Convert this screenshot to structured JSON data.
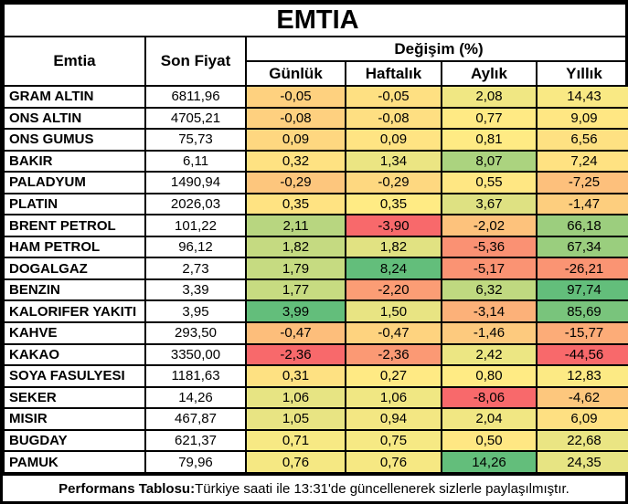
{
  "title": "EMTIA",
  "columns": {
    "emtia": "Emtia",
    "son_fiyat": "Son Fiyat",
    "degisim": "Değişim (%)",
    "sub": [
      "Günlük",
      "Haftalık",
      "Aylık",
      "Yıllık"
    ]
  },
  "rows": [
    {
      "name": "GRAM ALTIN",
      "price": "6811,96",
      "changes": [
        {
          "v": "-0,05",
          "c": "#FED17F"
        },
        {
          "v": "-0,05",
          "c": "#FEE082"
        },
        {
          "v": "2,08",
          "c": "#F0E783"
        },
        {
          "v": "14,43",
          "c": "#F9E984"
        }
      ]
    },
    {
      "name": "ONS ALTIN",
      "price": "4705,21",
      "changes": [
        {
          "v": "-0,08",
          "c": "#FED07F"
        },
        {
          "v": "-0,08",
          "c": "#FEDF82"
        },
        {
          "v": "0,77",
          "c": "#FFEA84"
        },
        {
          "v": "9,09",
          "c": "#FFE783"
        }
      ]
    },
    {
      "name": "ONS GUMUS",
      "price": "75,73",
      "changes": [
        {
          "v": "0,09",
          "c": "#FED780"
        },
        {
          "v": "0,09",
          "c": "#FFE483"
        },
        {
          "v": "0,81",
          "c": "#FFEB84"
        },
        {
          "v": "6,56",
          "c": "#FEE182"
        }
      ]
    },
    {
      "name": "BAKIR",
      "price": "6,11",
      "changes": [
        {
          "v": "0,32",
          "c": "#FEE282"
        },
        {
          "v": "1,34",
          "c": "#EBE583"
        },
        {
          "v": "8,07",
          "c": "#ABD37F"
        },
        {
          "v": "7,24",
          "c": "#FFE282"
        }
      ]
    },
    {
      "name": "PALADYUM",
      "price": "1490,94",
      "changes": [
        {
          "v": "-0,29",
          "c": "#FDC67D"
        },
        {
          "v": "-0,29",
          "c": "#FED880"
        },
        {
          "v": "0,55",
          "c": "#FFE783"
        },
        {
          "v": "-7,25",
          "c": "#FDC07C"
        }
      ]
    },
    {
      "name": "PLATIN",
      "price": "2026,03",
      "changes": [
        {
          "v": "0,35",
          "c": "#FFE382"
        },
        {
          "v": "0,35",
          "c": "#FFEB84"
        },
        {
          "v": "3,67",
          "c": "#DEE182"
        },
        {
          "v": "-1,47",
          "c": "#FDCE7E"
        }
      ]
    },
    {
      "name": "BRENT PETROL",
      "price": "101,22",
      "changes": [
        {
          "v": "2,11",
          "c": "#B8D680"
        },
        {
          "v": "-3,90",
          "c": "#F8696B"
        },
        {
          "v": "-2,02",
          "c": "#FDC27C"
        },
        {
          "v": "66,18",
          "c": "#9CCE7E"
        }
      ]
    },
    {
      "name": "HAM PETROL",
      "price": "96,12",
      "changes": [
        {
          "v": "1,82",
          "c": "#C5DA81"
        },
        {
          "v": "1,82",
          "c": "#E1E282"
        },
        {
          "v": "-5,36",
          "c": "#FA9173"
        },
        {
          "v": "67,34",
          "c": "#9ACE7E"
        }
      ]
    },
    {
      "name": "DOGALGAZ",
      "price": "2,73",
      "changes": [
        {
          "v": "1,79",
          "c": "#C6DB81"
        },
        {
          "v": "8,24",
          "c": "#63BE7B"
        },
        {
          "v": "-5,17",
          "c": "#FA9373"
        },
        {
          "v": "-26,21",
          "c": "#FA9473"
        }
      ]
    },
    {
      "name": "BENZIN",
      "price": "3,39",
      "changes": [
        {
          "v": "1,77",
          "c": "#C7DB81"
        },
        {
          "v": "-2,20",
          "c": "#FB9D75"
        },
        {
          "v": "6,32",
          "c": "#BFD980"
        },
        {
          "v": "97,74",
          "c": "#63BE7B"
        }
      ]
    },
    {
      "name": "KALORIFER YAKITI",
      "price": "3,95",
      "changes": [
        {
          "v": "3,99",
          "c": "#63BE7B"
        },
        {
          "v": "1,50",
          "c": "#E8E483"
        },
        {
          "v": "-3,14",
          "c": "#FCB179"
        },
        {
          "v": "85,69",
          "c": "#79C47C"
        }
      ]
    },
    {
      "name": "KAHVE",
      "price": "293,50",
      "changes": [
        {
          "v": "-0,47",
          "c": "#FDBE7B"
        },
        {
          "v": "-0,47",
          "c": "#FED37F"
        },
        {
          "v": "-1,46",
          "c": "#FDCA7E"
        },
        {
          "v": "-15,77",
          "c": "#FCAC78"
        }
      ]
    },
    {
      "name": "KAKAO",
      "price": "3350,00",
      "changes": [
        {
          "v": "-2,36",
          "c": "#F8696B"
        },
        {
          "v": "-2,36",
          "c": "#FB9974"
        },
        {
          "v": "2,42",
          "c": "#ECE683"
        },
        {
          "v": "-44,56",
          "c": "#F8696B"
        }
      ]
    },
    {
      "name": "SOYA FASULYESI",
      "price": "1181,63",
      "changes": [
        {
          "v": "0,31",
          "c": "#FEE182"
        },
        {
          "v": "0,27",
          "c": "#FFEA84"
        },
        {
          "v": "0,80",
          "c": "#FFEB84"
        },
        {
          "v": "12,83",
          "c": "#FCEA84"
        }
      ]
    },
    {
      "name": "SEKER",
      "price": "14,26",
      "changes": [
        {
          "v": "1,06",
          "c": "#E7E483"
        },
        {
          "v": "1,06",
          "c": "#F0E783"
        },
        {
          "v": "-8,06",
          "c": "#F8696B"
        },
        {
          "v": "-4,62",
          "c": "#FDC77D"
        }
      ]
    },
    {
      "name": "MISIR",
      "price": "467,87",
      "changes": [
        {
          "v": "1,05",
          "c": "#E8E483"
        },
        {
          "v": "0,94",
          "c": "#F3E783"
        },
        {
          "v": "2,04",
          "c": "#F1E783"
        },
        {
          "v": "6,09",
          "c": "#FEE082"
        }
      ]
    },
    {
      "name": "BUGDAY",
      "price": "621,37",
      "changes": [
        {
          "v": "0,71",
          "c": "#F7E984"
        },
        {
          "v": "0,75",
          "c": "#F6E984"
        },
        {
          "v": "0,50",
          "c": "#FFE783"
        },
        {
          "v": "22,68",
          "c": "#EAE583"
        }
      ]
    },
    {
      "name": "PAMUK",
      "price": "79,96",
      "changes": [
        {
          "v": "0,76",
          "c": "#F5E883"
        },
        {
          "v": "0,76",
          "c": "#F6E883"
        },
        {
          "v": "14,26",
          "c": "#63BE7B"
        },
        {
          "v": "24,35",
          "c": "#E7E483"
        }
      ]
    }
  ],
  "footer": {
    "label": "Performans Tablosu:",
    "text": " Türkiye saati ile 13:31'de güncellenerek sizlerle paylaşılmıştır."
  },
  "colors": {
    "heatmap_min_red": "#F8696B",
    "heatmap_mid_yellow": "#FFEB84",
    "heatmap_max_green": "#63BE7B",
    "border": "#000000",
    "background": "#FFFFFF",
    "text": "#000000"
  },
  "chart_data": {
    "type": "table",
    "title": "EMTIA",
    "columns": [
      "Emtia",
      "Son Fiyat",
      "Günlük",
      "Haftalık",
      "Aylık",
      "Yıllık"
    ],
    "change_unit": "Değişim (%)",
    "rows": [
      [
        "GRAM ALTIN",
        6811.96,
        -0.05,
        -0.05,
        2.08,
        14.43
      ],
      [
        "ONS ALTIN",
        4705.21,
        -0.08,
        -0.08,
        0.77,
        9.09
      ],
      [
        "ONS GUMUS",
        75.73,
        0.09,
        0.09,
        0.81,
        6.56
      ],
      [
        "BAKIR",
        6.11,
        0.32,
        1.34,
        8.07,
        7.24
      ],
      [
        "PALADYUM",
        1490.94,
        -0.29,
        -0.29,
        0.55,
        -7.25
      ],
      [
        "PLATIN",
        2026.03,
        0.35,
        0.35,
        3.67,
        -1.47
      ],
      [
        "BRENT PETROL",
        101.22,
        2.11,
        -3.9,
        -2.02,
        66.18
      ],
      [
        "HAM PETROL",
        96.12,
        1.82,
        1.82,
        -5.36,
        67.34
      ],
      [
        "DOGALGAZ",
        2.73,
        1.79,
        8.24,
        -5.17,
        -26.21
      ],
      [
        "BENZIN",
        3.39,
        1.77,
        -2.2,
        6.32,
        97.74
      ],
      [
        "KALORIFER YAKITI",
        3.95,
        3.99,
        1.5,
        -3.14,
        85.69
      ],
      [
        "KAHVE",
        293.5,
        -0.47,
        -0.47,
        -1.46,
        -15.77
      ],
      [
        "KAKAO",
        3350.0,
        -2.36,
        -2.36,
        2.42,
        -44.56
      ],
      [
        "SOYA FASULYESI",
        1181.63,
        0.31,
        0.27,
        0.8,
        12.83
      ],
      [
        "SEKER",
        14.26,
        1.06,
        1.06,
        -8.06,
        -4.62
      ],
      [
        "MISIR",
        467.87,
        1.05,
        0.94,
        2.04,
        6.09
      ],
      [
        "BUGDAY",
        621.37,
        0.71,
        0.75,
        0.5,
        22.68
      ],
      [
        "PAMUK",
        79.96,
        0.76,
        0.76,
        14.26,
        24.35
      ]
    ],
    "heatmap": "3-color scale per change column (red #F8696B min, yellow #FFEB84 mid, green #63BE7B max)",
    "note": "Performans Tablosu: Türkiye saati ile 13:31'de güncellenerek sizlerle paylaşılmıştır."
  }
}
